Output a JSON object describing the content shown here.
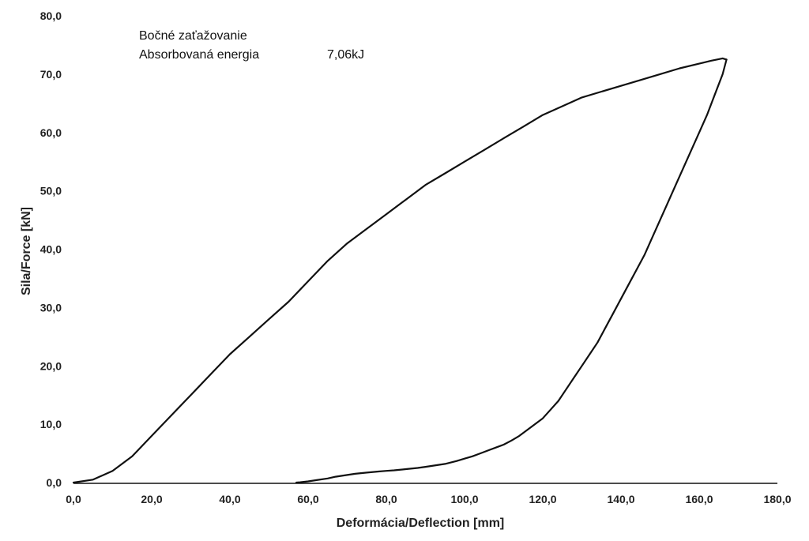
{
  "chart_data": {
    "type": "line",
    "xlabel": "Deformácia/Deflection [mm]",
    "ylabel": "Sila/Force [kN]",
    "xlim": [
      0,
      180
    ],
    "ylim": [
      0,
      80
    ],
    "x_ticks": [
      "0,0",
      "20,0",
      "40,0",
      "60,0",
      "80,0",
      "100,0",
      "120,0",
      "140,0",
      "160,0",
      "180,0"
    ],
    "y_ticks": [
      "0,0",
      "10,0",
      "20,0",
      "30,0",
      "40,0",
      "50,0",
      "60,0",
      "70,0",
      "80,0"
    ],
    "grid": false,
    "annotations": {
      "line1": "Bočné zaťažovanie",
      "line2_label": "Absorbovaná energia",
      "line2_value": "7,06kJ"
    },
    "series": [
      {
        "part": "loading",
        "x": [
          0,
          5,
          10,
          15,
          20,
          25,
          30,
          35,
          40,
          45,
          50,
          55,
          60,
          65,
          70,
          75,
          80,
          85,
          90,
          95,
          100,
          105,
          110,
          115,
          120,
          125,
          130,
          135,
          140,
          145,
          150,
          155,
          160,
          163,
          166,
          167
        ],
        "y": [
          0,
          0.5,
          2.0,
          4.5,
          8.0,
          11.5,
          15.0,
          18.5,
          22.0,
          25.0,
          28.0,
          31.0,
          34.5,
          38.0,
          41.0,
          43.5,
          46.0,
          48.5,
          51.0,
          53.0,
          55.0,
          57.0,
          59.0,
          61.0,
          63.0,
          64.5,
          66.0,
          67.0,
          68.0,
          69.0,
          70.0,
          71.0,
          71.8,
          72.3,
          72.7,
          72.5
        ]
      },
      {
        "part": "unloading",
        "x": [
          167,
          166,
          164,
          162,
          160,
          158,
          156,
          154,
          152,
          150,
          148,
          146,
          144,
          142,
          140,
          138,
          136,
          134,
          132,
          130,
          128,
          126,
          124,
          122,
          120,
          118,
          116,
          114,
          112,
          110,
          108,
          106,
          104,
          102,
          100,
          98,
          95,
          92,
          90,
          88,
          85,
          82,
          80,
          78,
          75,
          72,
          70,
          67,
          65,
          62,
          60,
          58,
          57
        ],
        "y": [
          72.5,
          70.0,
          66.5,
          63.0,
          60.0,
          57.0,
          54.0,
          51.0,
          48.0,
          45.0,
          42.0,
          39.0,
          36.5,
          34.0,
          31.5,
          29.0,
          26.5,
          24.0,
          22.0,
          20.0,
          18.0,
          16.0,
          14.0,
          12.5,
          11.0,
          10.0,
          9.0,
          8.0,
          7.2,
          6.5,
          6.0,
          5.5,
          5.0,
          4.5,
          4.1,
          3.7,
          3.2,
          2.9,
          2.7,
          2.5,
          2.3,
          2.1,
          2.0,
          1.9,
          1.7,
          1.5,
          1.3,
          1.0,
          0.7,
          0.4,
          0.2,
          0.05,
          0
        ]
      }
    ]
  }
}
